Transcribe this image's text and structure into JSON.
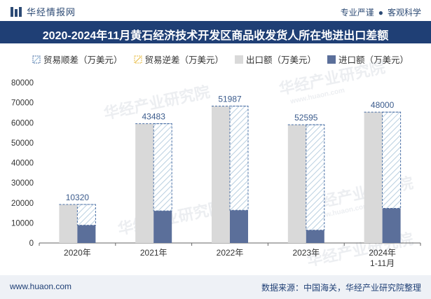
{
  "header": {
    "brand": "华经情报网",
    "tagline_left": "专业严谨",
    "tagline_sep": "●",
    "tagline_right": "客观科学",
    "brand_color": "#2c4a74"
  },
  "chart_data": {
    "type": "bar",
    "title": "2020-2024年11月黄石经济技术开发区商品收发货人所在地进出口差额",
    "categories": [
      "2020年",
      "2021年",
      "2022年",
      "2023年",
      "2024年\n1-11月"
    ],
    "series": [
      {
        "name": "贸易顺差（万美元）",
        "values": [
          10320,
          43483,
          51987,
          52595,
          48000
        ],
        "color": "#4a6fa5",
        "style": "hatched-outline"
      },
      {
        "name": "贸易逆差（万美元）",
        "values": [
          0,
          0,
          0,
          0,
          0
        ],
        "color": "#e7b93b",
        "style": "hatched-outline"
      },
      {
        "name": "出口额（万美元）",
        "values": [
          19200,
          59500,
          68300,
          59000,
          65300
        ],
        "color": "#d9d9d9"
      },
      {
        "name": "进口额（万美元）",
        "values": [
          8880,
          16017,
          16313,
          6405,
          17300
        ],
        "color": "#5b6f9a"
      }
    ],
    "data_labels": [
      "10320",
      "43483",
      "51987",
      "52595",
      "48000"
    ],
    "ylim": [
      0,
      80000
    ],
    "yticks": [
      "0",
      "10000",
      "20000",
      "30000",
      "40000",
      "50000",
      "60000",
      "70000",
      "80000"
    ],
    "xlabel": "",
    "ylabel": "",
    "grid": false,
    "legend_position": "top-left"
  },
  "watermark": "华经产业研究院",
  "watermark_url": "www.huaon.com",
  "footer": {
    "url": "www.huaon.com",
    "source": "数据来源：中国海关，华经产业研究院整理"
  },
  "colors": {
    "title_bar": "#1f3f75",
    "footer_bg": "#eef1f6",
    "label_color": "#3b5b8c"
  }
}
